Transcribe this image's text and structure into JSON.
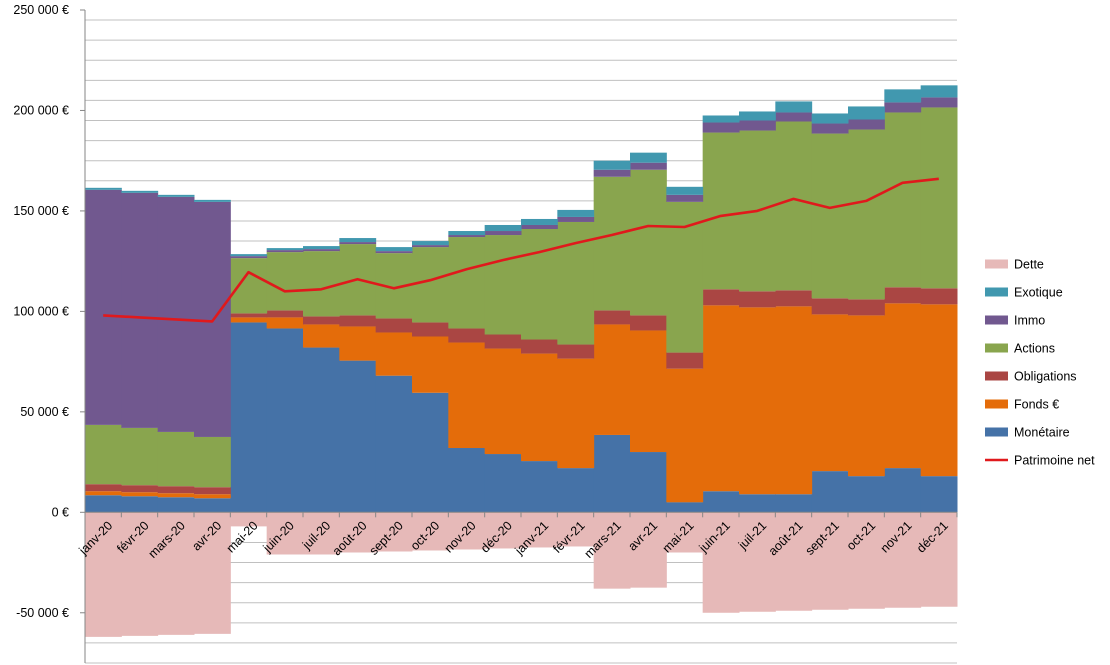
{
  "chart_data": {
    "type": "area",
    "stacked": true,
    "title": "",
    "xlabel": "",
    "ylabel": "",
    "ylim": [
      -75000,
      250000
    ],
    "grid": true,
    "legend_position": "right",
    "categories": [
      "janv-20",
      "févr-20",
      "mars-20",
      "avr-20",
      "mai-20",
      "juin-20",
      "juil-20",
      "août-20",
      "sept-20",
      "oct-20",
      "nov-20",
      "déc-20",
      "janv-21",
      "févr-21",
      "mars-21",
      "avr-21",
      "mai-21",
      "juin-21",
      "juil-21",
      "août-21",
      "sept-21",
      "oct-21",
      "nov-21",
      "déc-21"
    ],
    "y_ticks": [
      -50000,
      0,
      50000,
      100000,
      150000,
      200000,
      250000
    ],
    "y_tick_labels": [
      "-50 000 €",
      "0 €",
      "50 000 €",
      "100 000 €",
      "150 000 €",
      "200 000 €",
      "250 000 €"
    ],
    "series": [
      {
        "name": "Dette",
        "color": "#e6b9b8",
        "values": [
          -62000,
          -61500,
          -61000,
          -60500,
          -7000,
          -21000,
          -21000,
          -20000,
          -19500,
          -19000,
          -18500,
          -18000,
          -17500,
          -17000,
          -38000,
          -37500,
          -20000,
          -50000,
          -49500,
          -49000,
          -48500,
          -48000,
          -47500,
          -47000
        ]
      },
      {
        "name": "Exotique",
        "color": "#4198af",
        "values": [
          1000,
          1000,
          1000,
          1000,
          1000,
          1000,
          1500,
          2000,
          2000,
          2000,
          2000,
          3000,
          3000,
          3500,
          4500,
          5000,
          4000,
          3500,
          4500,
          5500,
          5000,
          6500,
          6500,
          6000
        ]
      },
      {
        "name": "Immo",
        "color": "#71588f",
        "values": [
          117000,
          117000,
          117000,
          117000,
          1000,
          1000,
          1000,
          1000,
          1000,
          1000,
          1000,
          2000,
          2000,
          2500,
          3500,
          3500,
          3500,
          5000,
          5000,
          4500,
          5000,
          5000,
          5000,
          5000
        ]
      },
      {
        "name": "Actions",
        "color": "#89a54e",
        "values": [
          29500,
          28500,
          27000,
          25000,
          27500,
          29000,
          32500,
          35500,
          32500,
          37500,
          45500,
          49500,
          55000,
          61000,
          66500,
          72500,
          75000,
          78000,
          80000,
          84000,
          82000,
          84500,
          87000,
          90000
        ]
      },
      {
        "name": "Obligations",
        "color": "#aa4643",
        "values": [
          3500,
          3500,
          3500,
          3500,
          2000,
          3500,
          4000,
          5500,
          7000,
          7000,
          7000,
          7000,
          7000,
          7000,
          7000,
          7500,
          8000,
          8000,
          8000,
          8000,
          8000,
          8000,
          8000,
          8000
        ]
      },
      {
        "name": "Fonds €",
        "color": "#e46c0a",
        "values": [
          2000,
          2000,
          2000,
          2000,
          2500,
          5500,
          11500,
          17000,
          21500,
          28000,
          52500,
          52500,
          53500,
          54500,
          55000,
          60500,
          66500,
          92500,
          93000,
          93500,
          78000,
          80000,
          82000,
          85500
        ]
      },
      {
        "name": "Monétaire",
        "color": "#4572a7",
        "values": [
          8500,
          8000,
          7500,
          7000,
          94500,
          91500,
          82000,
          75500,
          68000,
          59500,
          32000,
          29000,
          25500,
          22000,
          38500,
          30000,
          5000,
          10500,
          9000,
          9000,
          20500,
          18000,
          22000,
          18000
        ]
      }
    ],
    "line_series": [
      {
        "name": "Patrimoine net",
        "color": "#e0191c",
        "values": [
          98000,
          97000,
          96000,
          95000,
          119500,
          110000,
          111000,
          116000,
          111500,
          115500,
          121000,
          125500,
          129500,
          134000,
          138000,
          142500,
          142000,
          147500,
          150000,
          156000,
          151500,
          155000,
          164000,
          166000
        ]
      }
    ],
    "legend": [
      "Dette",
      "Exotique",
      "Immo",
      "Actions",
      "Obligations",
      "Fonds €",
      "Monétaire",
      "Patrimoine net"
    ]
  }
}
